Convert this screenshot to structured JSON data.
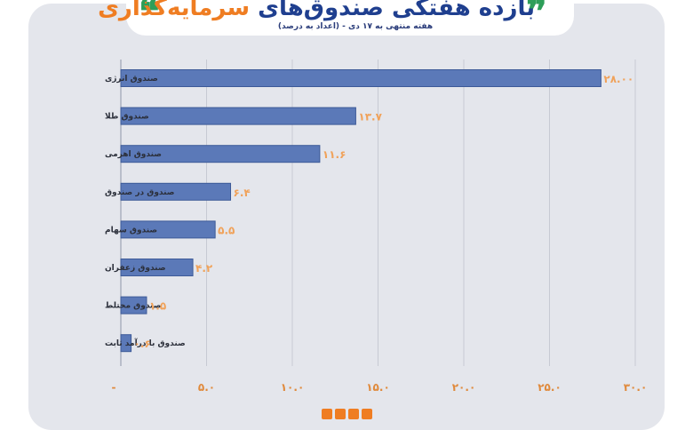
{
  "header": {
    "title_part1": "بازده هفتگی صندوق‌های",
    "title_part2": "سرمایه‌گذاری",
    "subtitle": "هفته منتهی به ۱۷ دی - (اعداد به درصد)"
  },
  "colors": {
    "bar_fill": "#5b79b8",
    "bar_stroke": "#3d5a98",
    "value_label": "#f0a25a",
    "title_blue": "#1f3f8f",
    "title_orange": "#ef7d22",
    "quote_green": "#2e9e59"
  },
  "chart_data": {
    "type": "bar",
    "orientation": "horizontal",
    "categories": [
      "صندوق انرژی",
      "صندوق طلا",
      "صندوق اهرمی",
      "صندوق در صندوق",
      "صندوق سهام",
      "صندوق زعفران",
      "صندوق مختلط",
      "صندوق با درآمد ثابت"
    ],
    "values": [
      28.0,
      13.7,
      11.6,
      6.4,
      5.5,
      4.2,
      1.5,
      0.6
    ],
    "value_labels": [
      "۲۸.۰۰",
      "۱۳.۷",
      "۱۱.۶",
      "۶.۴",
      "۵.۵",
      "۴.۲",
      "۱.۵",
      "۰.۶"
    ],
    "x_ticks": [
      0,
      5,
      10,
      15,
      20,
      25,
      30
    ],
    "x_tick_labels": [
      "-",
      "۵.۰",
      "۱۰.۰",
      "۱۵.۰",
      "۲۰.۰",
      "۲۵.۰",
      "۳۰.۰"
    ],
    "xlim": [
      0,
      30
    ],
    "grid": true
  }
}
